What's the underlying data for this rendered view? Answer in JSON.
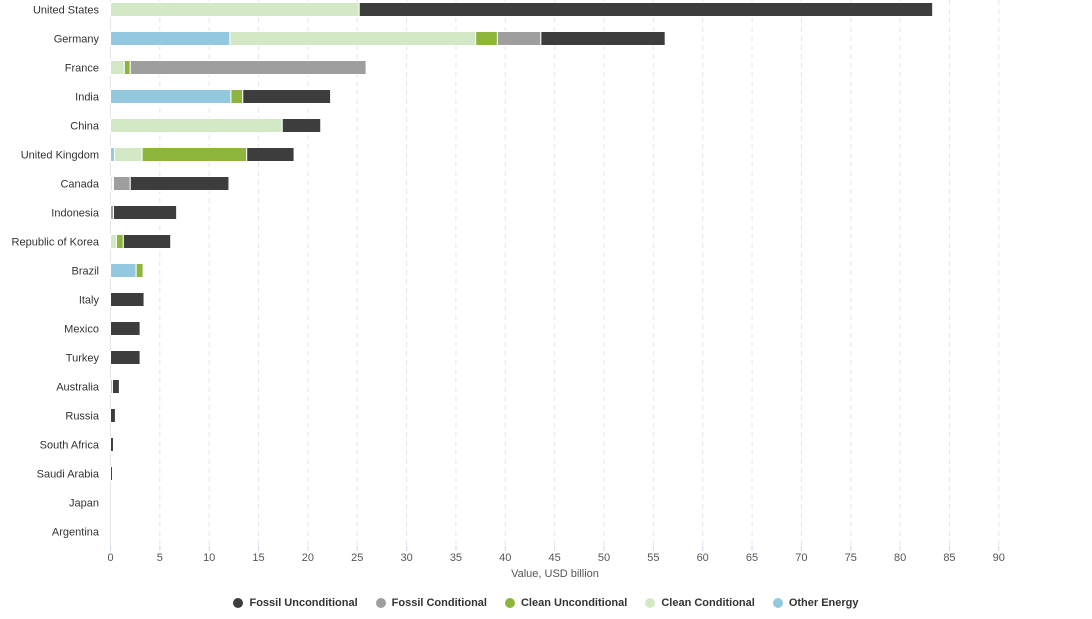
{
  "chart_data": {
    "type": "bar",
    "orientation": "horizontal",
    "stacked": true,
    "categories": [
      "United States",
      "Germany",
      "France",
      "India",
      "China",
      "United Kingdom",
      "Canada",
      "Indonesia",
      "Republic of Korea",
      "Brazil",
      "Italy",
      "Mexico",
      "Turkey",
      "Australia",
      "Russia",
      "South Africa",
      "Saudi Arabia",
      "Japan",
      "Argentina"
    ],
    "series": [
      {
        "name": "Other Energy",
        "key": "other",
        "color": "#92c9de",
        "values": [
          0,
          12.1,
          0,
          12.2,
          0,
          0.4,
          0,
          0,
          0,
          2.6,
          0,
          0,
          0,
          0.2,
          0,
          0,
          0,
          0,
          0
        ]
      },
      {
        "name": "Clean Conditional",
        "key": "clean_cond",
        "color": "#d3e8c5",
        "values": [
          25.2,
          24.9,
          1.4,
          0,
          17.4,
          2.8,
          0.2,
          0,
          0.6,
          0,
          0,
          0,
          0,
          0,
          0,
          0,
          0,
          0,
          0
        ]
      },
      {
        "name": "Clean Unconditional",
        "key": "clean_uncond",
        "color": "#8db43c",
        "values": [
          0,
          2.2,
          0.6,
          1.2,
          0,
          10.6,
          0.1,
          0,
          0.7,
          0.7,
          0,
          0,
          0,
          0,
          0,
          0,
          0,
          0,
          0
        ]
      },
      {
        "name": "Fossil Conditional",
        "key": "fossil_cond",
        "color": "#9e9e9e",
        "values": [
          0,
          4.4,
          23.9,
          0,
          0,
          0,
          1.7,
          0.3,
          0,
          0,
          0,
          0,
          0,
          0,
          0,
          0,
          0,
          0,
          0
        ]
      },
      {
        "name": "Fossil Unconditional",
        "key": "fossil_uncond",
        "color": "#3d3d3d",
        "values": [
          58.1,
          12.6,
          0,
          8.9,
          3.9,
          4.8,
          10.0,
          6.4,
          4.8,
          0,
          3.4,
          3.0,
          3.0,
          0.7,
          0.5,
          0.3,
          0.2,
          0,
          0
        ]
      }
    ],
    "xlabel": "Value, USD billion",
    "ylabel": "",
    "xlim": [
      0,
      90
    ],
    "xticks": [
      0,
      5,
      10,
      15,
      20,
      25,
      30,
      35,
      40,
      45,
      50,
      55,
      60,
      65,
      70,
      75,
      80,
      85,
      90
    ],
    "grid": true,
    "legend": {
      "position": "bottom-center",
      "order": [
        "Fossil Unconditional",
        "Fossil Conditional",
        "Clean Unconditional",
        "Clean Conditional",
        "Other Energy"
      ]
    }
  }
}
